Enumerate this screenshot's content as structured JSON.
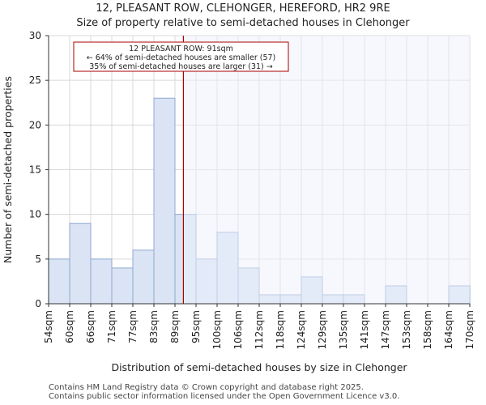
{
  "title_line1": "12, PLEASANT ROW, CLEHONGER, HEREFORD, HR2 9RE",
  "title_line2": "Size of property relative to semi-detached houses in Clehonger",
  "footer_line1": "Contains HM Land Registry data © Crown copyright and database right 2025.",
  "footer_line2": "Contains public sector information licensed under the Open Government Licence v3.0.",
  "colors": {
    "bar_fill": "#dae4f4",
    "bar_stroke": "#8fa8d0",
    "marker": "#aa0000",
    "axis": "#333333",
    "grid": "#d8d8d8"
  },
  "chart_data": {
    "type": "bar",
    "title": "Size of property relative to semi-detached houses in Clehonger",
    "xlabel": "Distribution of semi-detached houses by size in Clehonger",
    "ylabel": "Number of semi-detached properties",
    "ylim": [
      0,
      30
    ],
    "yticks": [
      0,
      5,
      10,
      15,
      20,
      25,
      30
    ],
    "tick_labels": [
      "54sqm",
      "60sqm",
      "66sqm",
      "71sqm",
      "77sqm",
      "83sqm",
      "89sqm",
      "95sqm",
      "100sqm",
      "106sqm",
      "112sqm",
      "118sqm",
      "124sqm",
      "129sqm",
      "135sqm",
      "141sqm",
      "147sqm",
      "153sqm",
      "158sqm",
      "164sqm",
      "170sqm"
    ],
    "values": [
      5,
      9,
      5,
      4,
      6,
      23,
      10,
      5,
      8,
      4,
      1,
      1,
      3,
      1,
      1,
      0,
      2,
      0,
      0,
      2
    ],
    "grid": true,
    "marker": {
      "bin_position": 6.4,
      "annotation_lines": [
        "12 PLEASANT ROW: 91sqm",
        "← 64% of semi-detached houses are smaller (57)",
        "35% of semi-detached houses are larger (31) →"
      ]
    }
  }
}
